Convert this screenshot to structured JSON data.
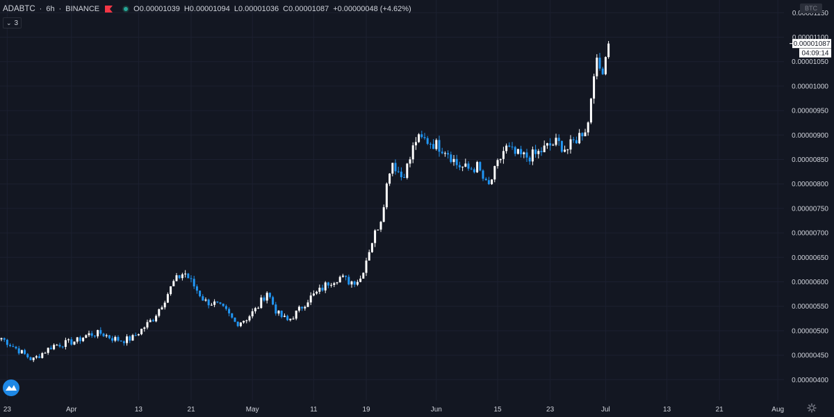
{
  "header": {
    "symbol": "ADABTC",
    "sep1": "·",
    "interval": "6h",
    "sep2": "·",
    "exchange": "BINANCE",
    "open": "O0.00001039",
    "high": "H0.00001094",
    "low": "L0.00001036",
    "close": "C0.00001087",
    "change": "+0.00000048 (+4.62%)",
    "flag_color": "#f23645",
    "status_color": "#26a69a"
  },
  "collapse_count": "3",
  "currency_badge": "BTC",
  "price_label": "0.00001087",
  "countdown": "04:09:14",
  "colors": {
    "background": "#131722",
    "up_candle": "#ffffff",
    "down_candle": "#2196f3",
    "grid": "#1c2030",
    "axis_text": "#d1d4dc"
  },
  "icons": [
    "flag-icon",
    "status-dot-icon",
    "chevron-down-icon",
    "tradingview-logo-icon",
    "gear-icon"
  ],
  "chart_data": {
    "type": "candlestick",
    "y_ticks": [
      "0.00001150",
      "0.00001100",
      "0.00001050",
      "0.00001000",
      "0.00000950",
      "0.00000900",
      "0.00000850",
      "0.00000800",
      "0.00000750",
      "0.00000700",
      "0.00000650",
      "0.00000600",
      "0.00000550",
      "0.00000500",
      "0.00000450",
      "0.00000400"
    ],
    "ylim": [
      3.9e-06,
      1.16e-05
    ],
    "x_ticks": [
      "23",
      "Apr",
      "13",
      "21",
      "May",
      "11",
      "19",
      "Jun",
      "15",
      "23",
      "Jul",
      "13",
      "21",
      "Aug"
    ],
    "series": [
      {
        "anchors": [
          [
            0,
            4.85e-06
          ],
          [
            3,
            4.7e-06
          ],
          [
            6,
            4.55e-06
          ],
          [
            9,
            4.4e-06
          ],
          [
            12,
            4.55e-06
          ],
          [
            15,
            4.7e-06
          ],
          [
            19,
            4.75e-06
          ],
          [
            22,
            4.8e-06
          ],
          [
            25,
            4.92e-06
          ],
          [
            29,
            4.95e-06
          ],
          [
            32,
            4.85e-06
          ],
          [
            35,
            4.8e-06
          ],
          [
            38,
            4.85e-06
          ],
          [
            41,
            5.05e-06
          ],
          [
            44,
            5.25e-06
          ],
          [
            47,
            5.6e-06
          ],
          [
            50,
            6e-06
          ],
          [
            53,
            6.2e-06
          ],
          [
            56,
            5.9e-06
          ],
          [
            59,
            5.6e-06
          ],
          [
            62,
            5.55e-06
          ],
          [
            65,
            5.4e-06
          ],
          [
            68,
            5.15e-06
          ],
          [
            71,
            5.25e-06
          ],
          [
            74,
            5.45e-06
          ],
          [
            77,
            5.8e-06
          ],
          [
            80,
            5.35e-06
          ],
          [
            83,
            5.2e-06
          ],
          [
            86,
            5.4e-06
          ],
          [
            89,
            5.65e-06
          ],
          [
            92,
            5.8e-06
          ],
          [
            95,
            6e-06
          ],
          [
            98,
            6.1e-06
          ],
          [
            101,
            6e-06
          ],
          [
            104,
            6.05e-06
          ],
          [
            107,
            6.75e-06
          ],
          [
            110,
            7.3e-06
          ],
          [
            113,
            8.5e-06
          ],
          [
            116,
            8.15e-06
          ],
          [
            118,
            8.4e-06
          ],
          [
            120,
            8.9e-06
          ],
          [
            123,
            8.9e-06
          ],
          [
            126,
            8.8e-06
          ],
          [
            129,
            8.7e-06
          ],
          [
            132,
            8.4e-06
          ],
          [
            135,
            8.3e-06
          ],
          [
            138,
            8.35e-06
          ],
          [
            141,
            7.9e-06
          ],
          [
            143,
            8.25e-06
          ],
          [
            146,
            8.75e-06
          ],
          [
            149,
            8.6e-06
          ],
          [
            152,
            8.55e-06
          ],
          [
            155,
            8.6e-06
          ],
          [
            158,
            8.75e-06
          ],
          [
            161,
            8.85e-06
          ],
          [
            164,
            8.7e-06
          ],
          [
            167,
            8.95e-06
          ],
          [
            170,
            9.2e-06
          ],
          [
            172,
            1.05e-05
          ],
          [
            174,
            1.03e-05
          ],
          [
            176,
            1.087e-05
          ]
        ]
      }
    ]
  }
}
